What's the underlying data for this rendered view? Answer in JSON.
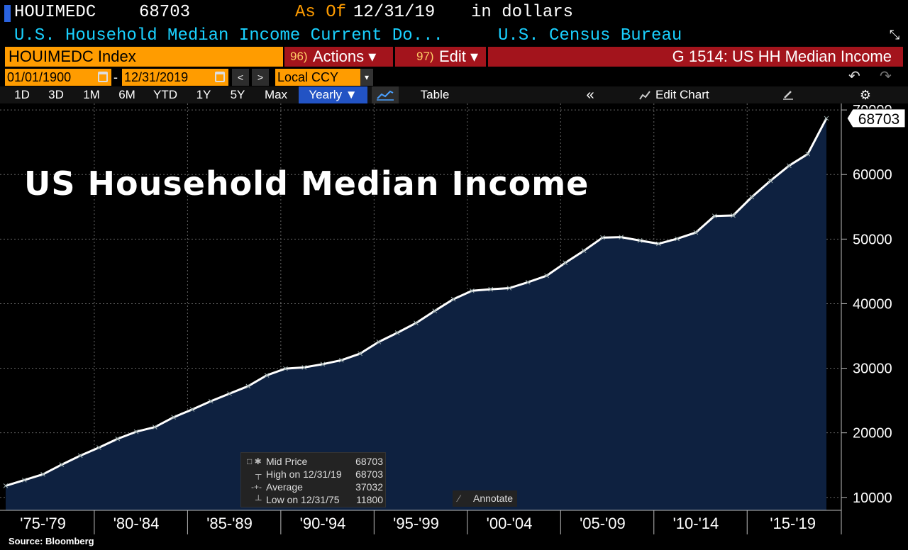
{
  "header": {
    "ticker": "HOUIMEDC",
    "last_value": "68703",
    "as_of_label": "As Of",
    "as_of_date": "12/31/19",
    "units": "in dollars",
    "description": "U.S. Household Median Income Current Do...",
    "source": "U.S. Census Bureau"
  },
  "toolbar": {
    "security": "HOUIMEDC Index",
    "actions_num": "96)",
    "actions_label": "Actions ▾",
    "edit_num": "97)",
    "edit_label": "Edit ▾",
    "graph_title": "G 1514: US HH Median Income",
    "start_date": "01/01/1900",
    "date_sep": "-",
    "end_date": "12/31/2019",
    "currency": "Local CCY",
    "prev": "<",
    "next": ">",
    "dropdown": "▾",
    "undo": "↶",
    "redo": "↷"
  },
  "periods": [
    "1D",
    "3D",
    "1M",
    "6M",
    "YTD",
    "1Y",
    "5Y",
    "Max"
  ],
  "frequency": "Yearly ▼",
  "table_label": "Table",
  "collapse": "«",
  "edit_chart": "Edit Chart",
  "gear": "⚙",
  "legend": {
    "rows": [
      {
        "glyph": "□ ✱",
        "label": "Mid Price",
        "value": "68703"
      },
      {
        "glyph": "┬",
        "label": "High on 12/31/19",
        "value": "68703"
      },
      {
        "glyph": "-+-",
        "label": "Average",
        "value": "37032"
      },
      {
        "glyph": "┴",
        "label": "Low on 12/31/75",
        "value": "11800"
      }
    ]
  },
  "annotate_label": "Annotate",
  "source_note": "Source: Bloomberg",
  "colors": {
    "accent_orange": "#ff9c00",
    "header_red": "#a3141c",
    "cyan_text": "#1ad1ff",
    "area_fill": "#0e2140",
    "line": "#ffffff"
  },
  "chart_data": {
    "type": "area",
    "title": "US Household Median Income",
    "x": [
      1975,
      1976,
      1977,
      1978,
      1979,
      1980,
      1981,
      1982,
      1983,
      1984,
      1985,
      1986,
      1987,
      1988,
      1989,
      1990,
      1991,
      1992,
      1993,
      1994,
      1995,
      1996,
      1997,
      1998,
      1999,
      2000,
      2001,
      2002,
      2003,
      2004,
      2005,
      2006,
      2007,
      2008,
      2009,
      2010,
      2011,
      2012,
      2013,
      2014,
      2015,
      2016,
      2017,
      2018,
      2019
    ],
    "series": [
      {
        "name": "Mid Price",
        "values": [
          11800,
          12686,
          13572,
          15064,
          16461,
          17710,
          19074,
          20171,
          20885,
          22415,
          23618,
          24897,
          26061,
          27225,
          28906,
          29943,
          30126,
          30636,
          31241,
          32264,
          34076,
          35492,
          37005,
          38885,
          40696,
          41990,
          42228,
          42409,
          43318,
          44334,
          46326,
          48201,
          50233,
          50303,
          49777,
          49276,
          50054,
          51017,
          53585,
          53657,
          56516,
          59039,
          61372,
          63179,
          68703
        ]
      }
    ],
    "x_tick_labels": [
      "'75-'79",
      "'80-'84",
      "'85-'89",
      "'90-'94",
      "'95-'99",
      "'00-'04",
      "'05-'09",
      "'10-'14",
      "'15-'19"
    ],
    "y_ticks": [
      10000,
      20000,
      30000,
      40000,
      50000,
      60000,
      70000
    ],
    "ylim": [
      8000,
      71000
    ],
    "last_value_label": "68703",
    "grid": true
  }
}
